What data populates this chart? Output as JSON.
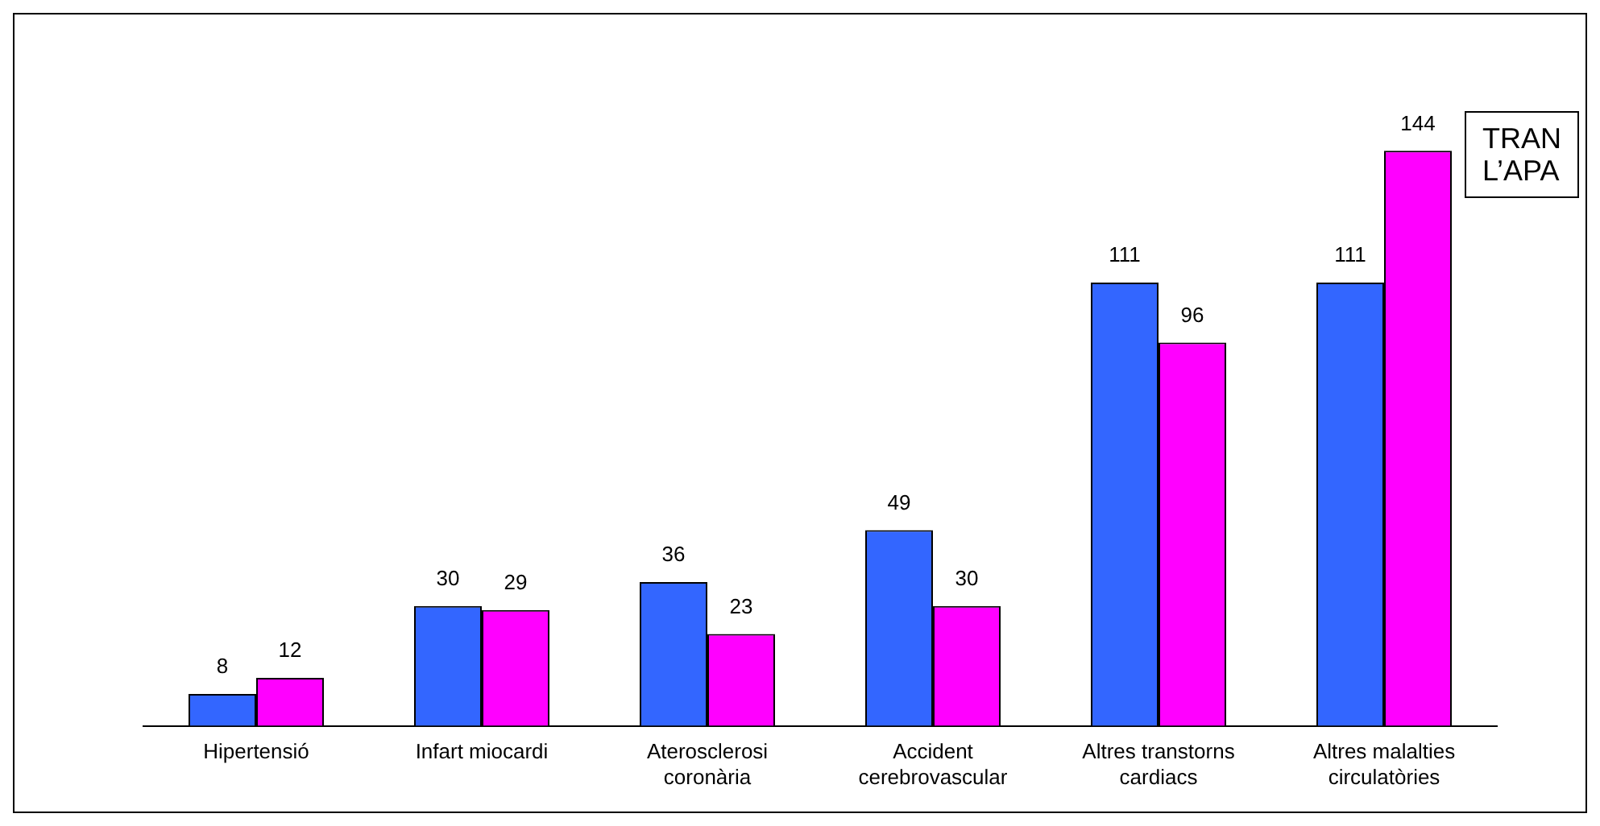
{
  "chart_data": {
    "type": "bar",
    "categories": [
      "Hipertensió",
      "Infart miocardi",
      "Aterosclerosi coronària",
      "Accident cerebrovascular",
      "Altres transtorns cardiacs",
      "Altres malalties circulatòries"
    ],
    "series": [
      {
        "color": "#3366ff",
        "values": [
          8,
          30,
          36,
          49,
          111,
          111
        ]
      },
      {
        "color": "#ff00ff",
        "values": [
          12,
          29,
          23,
          30,
          96,
          144
        ]
      }
    ],
    "data_labels": true,
    "grid": false,
    "legend": false,
    "annotations": [
      "TRAN\nL’APA"
    ]
  }
}
